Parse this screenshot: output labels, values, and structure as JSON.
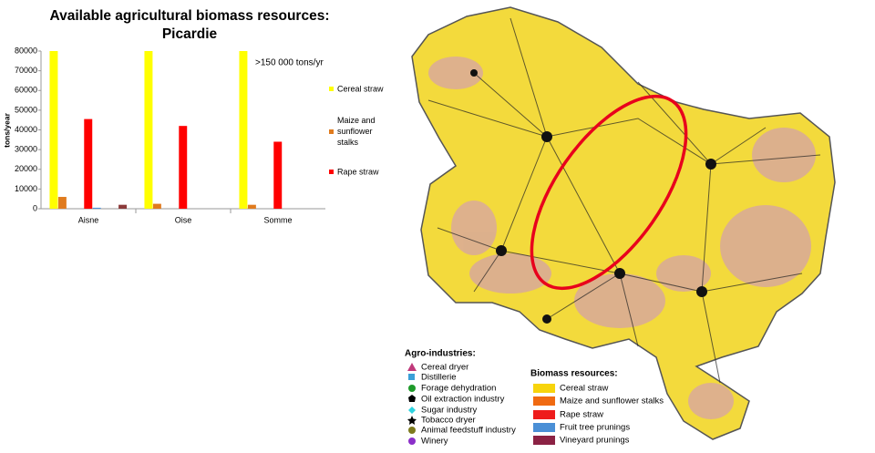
{
  "chart_data": {
    "type": "bar",
    "title": "Available agricultural biomass resources:",
    "subtitle": "Picardie",
    "annotation": ">150 000 tons/yr",
    "y_label": "tons/year",
    "categories": [
      "Aisne",
      "Oise",
      "Somme"
    ],
    "series": [
      {
        "name": "Cereal straw",
        "color": "#ffff00",
        "values": [
          150000,
          150000,
          150000
        ]
      },
      {
        "name": "Maize and sunflower stalks",
        "color": "#e07b1e",
        "values": [
          6000,
          2500,
          2000
        ]
      },
      {
        "name": "Rape straw",
        "color": "#ff0000",
        "values": [
          45500,
          42000,
          34000
        ]
      },
      {
        "color": "#4a90d9",
        "values": [
          500,
          0,
          0
        ]
      },
      {
        "color": "#8b3a3a",
        "values": [
          2000,
          0,
          0
        ]
      }
    ],
    "ylim": [
      0,
      80000
    ],
    "yticks": [
      0,
      10000,
      20000,
      30000,
      40000,
      50000,
      60000,
      70000,
      80000
    ],
    "grid": false
  },
  "map": {
    "agro_title": "Agro-industries:",
    "agro_items": [
      "Cereal dryer",
      "Distillerie",
      "Forage dehydration",
      "Oil extraction industry",
      "Sugar industry",
      "Tobacco dryer",
      "Animal feedstuff industry",
      "Winery"
    ],
    "biomass_title": "Biomass resources:",
    "biomass_items": [
      "Cereal straw",
      "Maize and sunflower stalks",
      "Rape straw",
      "Fruit tree prunings",
      "Vineyard prunings"
    ]
  }
}
